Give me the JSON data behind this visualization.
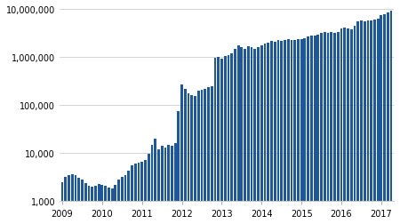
{
  "bar_color": "#1f5799",
  "background_color": "#ffffff",
  "grid_color": "#cccccc",
  "ylim": [
    1000,
    12000000
  ],
  "ylabel_ticks": [
    1000,
    10000,
    100000,
    1000000,
    10000000
  ],
  "ylabel_labels": [
    "1,000",
    "10,000",
    "100,000",
    "1,000,000",
    "10,000,000"
  ],
  "xtick_labels": [
    "2009",
    "2010",
    "2011",
    "2012",
    "2013",
    "2014",
    "2015",
    "2016",
    "2017"
  ],
  "year_starts": [
    0,
    12,
    24,
    36,
    48,
    60,
    72,
    84,
    96
  ],
  "values": [
    2500,
    3200,
    3500,
    3600,
    3400,
    3000,
    2800,
    2400,
    2100,
    2000,
    2100,
    2300,
    2200,
    2100,
    1900,
    1800,
    2200,
    2800,
    3200,
    3500,
    4200,
    5500,
    6000,
    6200,
    6500,
    7000,
    9800,
    15000,
    20000,
    12000,
    14000,
    13000,
    15000,
    14000,
    16000,
    75000,
    270000,
    220000,
    175000,
    160000,
    155000,
    200000,
    210000,
    220000,
    240000,
    250000,
    960000,
    1000000,
    950000,
    1050000,
    1100000,
    1200000,
    1500000,
    1800000,
    1600000,
    1500000,
    1700000,
    1600000,
    1500000,
    1600000,
    1800000,
    1900000,
    2000000,
    2200000,
    2100000,
    2300000,
    2200000,
    2300000,
    2400000,
    2300000,
    2300000,
    2400000,
    2400000,
    2500000,
    2700000,
    2800000,
    2800000,
    3000000,
    3200000,
    3300000,
    3200000,
    3300000,
    3200000,
    3300000,
    4000000,
    4200000,
    4000000,
    3800000,
    4500000,
    5500000,
    5800000,
    5700000,
    5800000,
    5900000,
    6200000,
    6300000,
    7500000,
    8000000,
    8500000,
    9200000
  ]
}
